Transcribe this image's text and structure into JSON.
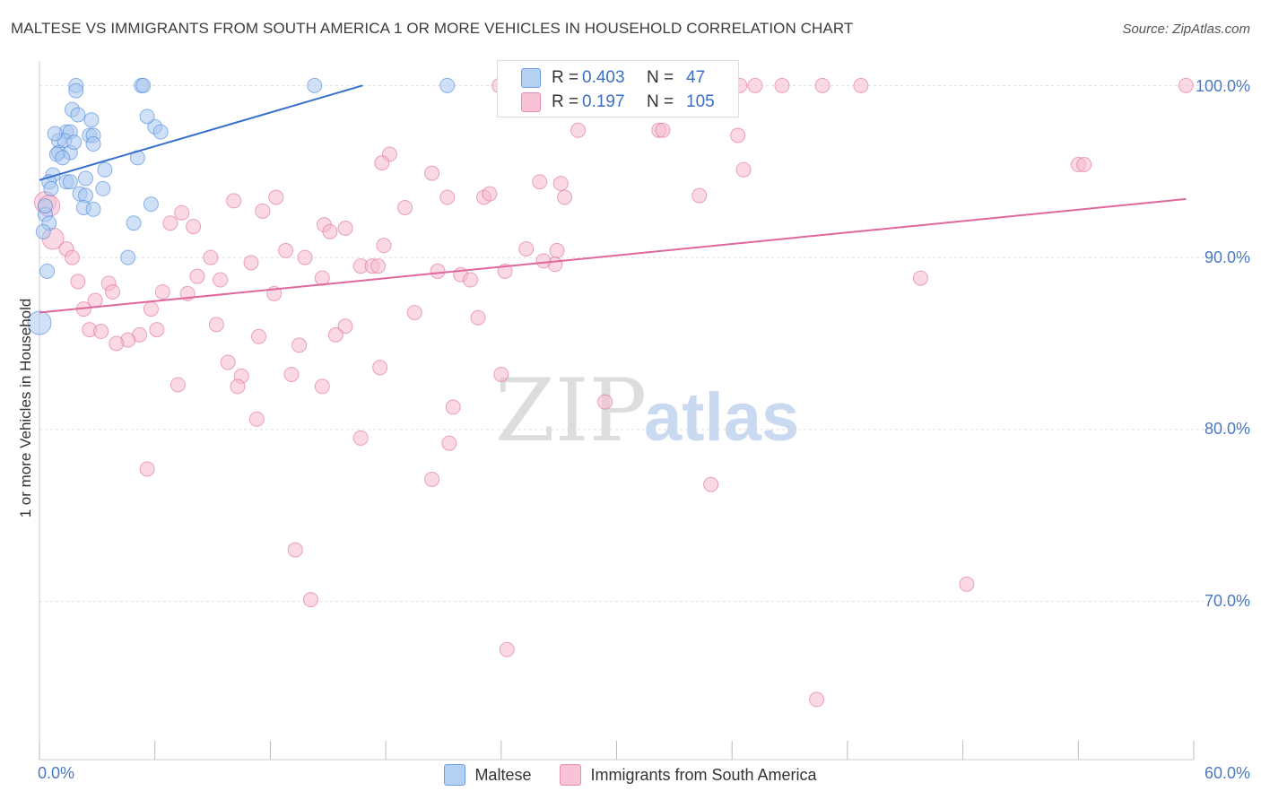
{
  "title": "MALTESE VS IMMIGRANTS FROM SOUTH AMERICA 1 OR MORE VEHICLES IN HOUSEHOLD CORRELATION CHART",
  "source": "Source: ZipAtlas.com",
  "watermark": {
    "zip": "ZIP",
    "atlas": "atlas"
  },
  "legend": {
    "r_label": "R =",
    "n_label": "N =",
    "items": [
      {
        "r": "0.403",
        "n": "47"
      },
      {
        "r": "0.197",
        "n": "105"
      }
    ]
  },
  "bottom_legend": [
    "Maltese",
    "Immigrants from South America"
  ],
  "chart_data": {
    "type": "scatter",
    "title": "MALTESE VS IMMIGRANTS FROM SOUTH AMERICA 1 OR MORE VEHICLES IN HOUSEHOLD CORRELATION CHART",
    "xlabel": "",
    "ylabel": "1 or more Vehicles in Household",
    "xlim": [
      0,
      60
    ],
    "ylim": [
      60.8,
      100.8
    ],
    "x_tick_labels": [
      "0.0%",
      "60.0%"
    ],
    "y_ticks": [
      70,
      80,
      90,
      100
    ],
    "y_tick_labels": [
      "70.0%",
      "80.0%",
      "90.0%",
      "100.0%"
    ],
    "grid": true,
    "series": [
      {
        "name": "Maltese",
        "color": "#4a86d8",
        "fill": "#a9c8f0",
        "R": 0.403,
        "N": 47,
        "trend": {
          "x": [
            0,
            16.8
          ],
          "y": [
            94.5,
            100
          ]
        },
        "points": [
          [
            1.9,
            100
          ],
          [
            5.3,
            100
          ],
          [
            5.4,
            100
          ],
          [
            14.3,
            100
          ],
          [
            21.2,
            100
          ],
          [
            1.9,
            99.7
          ],
          [
            1.7,
            98.6
          ],
          [
            2.0,
            98.3
          ],
          [
            2.7,
            98.0
          ],
          [
            6.0,
            97.6
          ],
          [
            1.4,
            97.3
          ],
          [
            1.6,
            97.3
          ],
          [
            2.6,
            97.1
          ],
          [
            2.8,
            97.1
          ],
          [
            6.3,
            97.3
          ],
          [
            1.0,
            96.8
          ],
          [
            1.3,
            96.8
          ],
          [
            2.8,
            96.6
          ],
          [
            1.0,
            96.1
          ],
          [
            1.6,
            96.1
          ],
          [
            0.9,
            96.0
          ],
          [
            1.2,
            95.8
          ],
          [
            5.1,
            95.8
          ],
          [
            3.4,
            95.1
          ],
          [
            0.7,
            94.8
          ],
          [
            2.4,
            94.6
          ],
          [
            0.5,
            94.4
          ],
          [
            1.4,
            94.4
          ],
          [
            1.6,
            94.4
          ],
          [
            0.6,
            94.0
          ],
          [
            3.3,
            94.0
          ],
          [
            2.1,
            93.7
          ],
          [
            2.4,
            93.6
          ],
          [
            5.8,
            93.1
          ],
          [
            2.3,
            92.9
          ],
          [
            2.8,
            92.8
          ],
          [
            0.3,
            92.5
          ],
          [
            0.5,
            92.0
          ],
          [
            4.9,
            92.0
          ],
          [
            0.2,
            91.5
          ],
          [
            4.6,
            90.0
          ],
          [
            0.4,
            89.2
          ],
          [
            0.0,
            86.2
          ],
          [
            0.3,
            93.0
          ],
          [
            1.8,
            96.7
          ],
          [
            0.8,
            97.2
          ],
          [
            5.6,
            98.2
          ]
        ]
      },
      {
        "name": "Immigrants from South America",
        "color": "#e06a98",
        "fill": "#f6b9ce",
        "R": 0.197,
        "N": 105,
        "trend": {
          "x": [
            0,
            59.6
          ],
          "y": [
            86.8,
            93.4
          ]
        },
        "points": [
          [
            23.9,
            100
          ],
          [
            24.3,
            100
          ],
          [
            30.9,
            100
          ],
          [
            34.0,
            100
          ],
          [
            36.4,
            100
          ],
          [
            37.2,
            100
          ],
          [
            38.6,
            100
          ],
          [
            40.7,
            100
          ],
          [
            42.7,
            100
          ],
          [
            59.6,
            100
          ],
          [
            28.0,
            97.4
          ],
          [
            32.2,
            97.4
          ],
          [
            32.4,
            97.4
          ],
          [
            36.3,
            97.1
          ],
          [
            18.2,
            96.0
          ],
          [
            17.8,
            95.5
          ],
          [
            36.6,
            95.1
          ],
          [
            20.4,
            94.9
          ],
          [
            54.0,
            95.4
          ],
          [
            54.3,
            95.4
          ],
          [
            26.0,
            94.4
          ],
          [
            27.1,
            94.3
          ],
          [
            21.2,
            93.5
          ],
          [
            23.1,
            93.5
          ],
          [
            23.4,
            93.7
          ],
          [
            27.3,
            93.5
          ],
          [
            34.3,
            93.6
          ],
          [
            0.3,
            93.2
          ],
          [
            0.5,
            93.0
          ],
          [
            10.1,
            93.3
          ],
          [
            12.3,
            93.5
          ],
          [
            19.0,
            92.9
          ],
          [
            7.4,
            92.6
          ],
          [
            11.6,
            92.7
          ],
          [
            6.8,
            92.0
          ],
          [
            8.0,
            91.8
          ],
          [
            14.8,
            91.9
          ],
          [
            15.1,
            91.5
          ],
          [
            15.9,
            91.7
          ],
          [
            0.7,
            91.1
          ],
          [
            1.4,
            90.5
          ],
          [
            1.7,
            90.0
          ],
          [
            12.8,
            90.4
          ],
          [
            13.8,
            90.0
          ],
          [
            17.9,
            90.7
          ],
          [
            25.3,
            90.5
          ],
          [
            26.9,
            90.4
          ],
          [
            8.9,
            90.0
          ],
          [
            11.0,
            89.7
          ],
          [
            16.7,
            89.5
          ],
          [
            17.3,
            89.5
          ],
          [
            17.6,
            89.5
          ],
          [
            26.8,
            89.6
          ],
          [
            26.2,
            89.8
          ],
          [
            20.7,
            89.2
          ],
          [
            21.9,
            89.0
          ],
          [
            22.4,
            88.7
          ],
          [
            24.2,
            89.2
          ],
          [
            2.0,
            88.6
          ],
          [
            3.6,
            88.5
          ],
          [
            8.2,
            88.9
          ],
          [
            9.4,
            88.7
          ],
          [
            14.7,
            88.8
          ],
          [
            45.8,
            88.8
          ],
          [
            3.8,
            88.0
          ],
          [
            6.4,
            88.0
          ],
          [
            7.7,
            87.9
          ],
          [
            12.2,
            87.9
          ],
          [
            2.9,
            87.5
          ],
          [
            2.3,
            87.0
          ],
          [
            5.8,
            87.0
          ],
          [
            19.5,
            86.8
          ],
          [
            22.8,
            86.5
          ],
          [
            9.2,
            86.1
          ],
          [
            15.9,
            86.0
          ],
          [
            2.6,
            85.8
          ],
          [
            3.2,
            85.7
          ],
          [
            6.1,
            85.8
          ],
          [
            5.2,
            85.5
          ],
          [
            11.4,
            85.4
          ],
          [
            15.4,
            85.5
          ],
          [
            4.6,
            85.2
          ],
          [
            4.0,
            85.0
          ],
          [
            13.5,
            84.9
          ],
          [
            9.8,
            83.9
          ],
          [
            17.7,
            83.6
          ],
          [
            10.5,
            83.1
          ],
          [
            13.1,
            83.2
          ],
          [
            24.0,
            83.2
          ],
          [
            7.2,
            82.6
          ],
          [
            10.3,
            82.5
          ],
          [
            14.7,
            82.5
          ],
          [
            21.5,
            81.3
          ],
          [
            29.4,
            81.6
          ],
          [
            11.3,
            80.6
          ],
          [
            16.7,
            79.5
          ],
          [
            21.3,
            79.2
          ],
          [
            5.6,
            77.7
          ],
          [
            20.4,
            77.1
          ],
          [
            34.9,
            76.8
          ],
          [
            13.3,
            73.0
          ],
          [
            48.2,
            71.0
          ],
          [
            14.1,
            70.1
          ],
          [
            24.3,
            67.2
          ],
          [
            40.4,
            64.3
          ]
        ]
      }
    ]
  }
}
